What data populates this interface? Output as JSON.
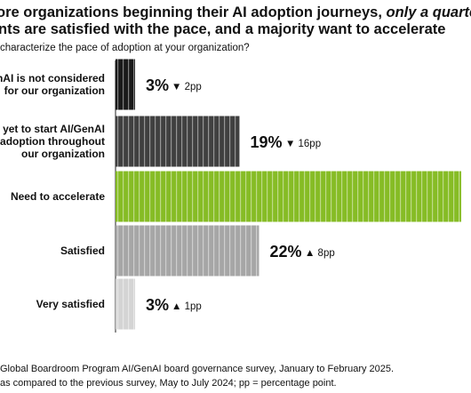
{
  "chart_data": {
    "type": "bar",
    "orientation": "horizontal",
    "title": [
      "ore organizations beginning their AI adoption journeys, ",
      "only a quarter",
      "nts are satisfied with the pace, and a majority want to accelerate"
    ],
    "subtitle": "characterize the pace of adoption at your organization?",
    "categories": [
      [
        "enAI is not considered",
        "for our organization"
      ],
      [
        "yet to start AI/GenAI",
        "adoption throughout",
        "our organization"
      ],
      [
        "Need to accelerate"
      ],
      [
        "Satisfied"
      ],
      [
        "Very satisfied"
      ]
    ],
    "values": [
      3,
      19,
      53,
      22,
      3
    ],
    "value_labels": [
      "3%",
      "19%",
      null,
      "22%",
      "3%"
    ],
    "changes": [
      "▼ 2pp",
      "▼ 16pp",
      null,
      "▲ 8pp",
      "▲ 1pp"
    ],
    "colors": [
      "#1a1a1a",
      "#404040",
      "#86bc25",
      "#a6a6a6",
      "#d4d4d4"
    ],
    "xlim": [
      0,
      53
    ],
    "notes": [
      "Global Boardroom Program AI/GenAI board governance survey, January to February 2025.",
      "as compared to the previous survey, May to July 2024; pp = percentage point."
    ]
  }
}
